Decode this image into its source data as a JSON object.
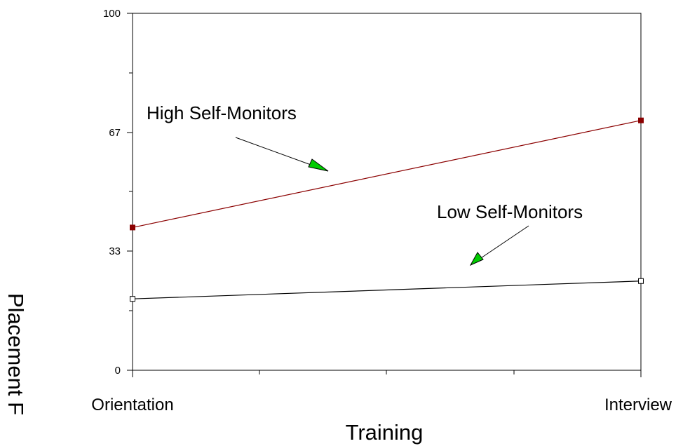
{
  "chart_data": {
    "type": "line",
    "categories": [
      "Orientation",
      "Interview"
    ],
    "xlabel": "Training",
    "ylabel": "Placement F",
    "ylim": [
      0,
      100
    ],
    "y_ticks": [
      "0",
      "33",
      "67",
      "100"
    ],
    "grid": false,
    "legend": "none",
    "series": [
      {
        "name": "High Self-Monitors",
        "values": [
          40,
          70
        ],
        "color": "#8b0000",
        "marker": "filled-square"
      },
      {
        "name": "Low Self-Monitors",
        "values": [
          20,
          25
        ],
        "color": "#000000",
        "marker": "open-square"
      }
    ],
    "annotations": [
      {
        "text": "High Self-Monitors",
        "points_to": "High Self-Monitors",
        "arrow_color": "#00cc00"
      },
      {
        "text": "Low Self-Monitors",
        "points_to": "Low Self-Monitors",
        "arrow_color": "#00cc00"
      }
    ]
  }
}
